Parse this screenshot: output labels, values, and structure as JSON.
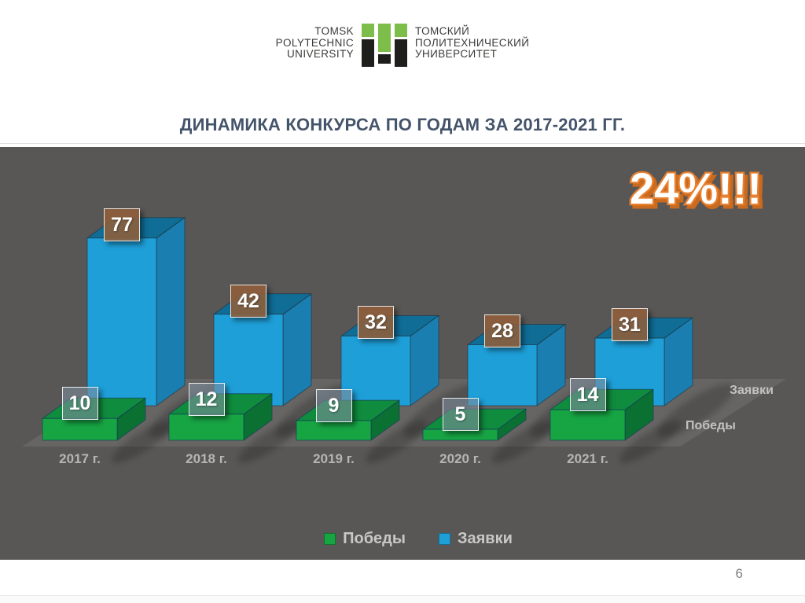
{
  "page": {
    "number": "6"
  },
  "header": {
    "logo_en_lines": [
      "TOMSK",
      "POLYTECHNIC",
      "UNIVERSITY"
    ],
    "logo_ru_lines": [
      "ТОМСКИЙ",
      "ПОЛИТЕХНИЧЕСКИЙ",
      "УНИВЕРСИТЕТ"
    ],
    "logo_green": "#7DBE4A",
    "logo_black": "#1E1E1C"
  },
  "title": "ДИНАМИКА КОНКУРСА ПО ГОДАМ ЗА 2017-2021 ГГ.",
  "chart_data": {
    "type": "bar",
    "style": "3d",
    "title": "ДИНАМИКА КОНКУРСА ПО ГОДАМ ЗА 2017-2021 ГГ.",
    "categories": [
      "2017 г.",
      "2018 г.",
      "2019 г.",
      "2020 г.",
      "2021 г."
    ],
    "series": [
      {
        "name": "Победы",
        "values": [
          10,
          12,
          9,
          5,
          14
        ],
        "color": "#17A544",
        "color_top": "#0F8C3D",
        "color_side": "#0B7132",
        "label_box": "rgba(125,140,155,0.6)"
      },
      {
        "name": "Заявки",
        "values": [
          77,
          42,
          32,
          28,
          31
        ],
        "color": "#1E9FD8",
        "color_top": "#0F6D96",
        "color_side": "#1A7FB0",
        "label_box": "rgba(143,95,58,0.88)"
      }
    ],
    "annotation": "24%!!!",
    "annotation_color": "#E8802F",
    "legend": [
      "Победы",
      "Заявки"
    ],
    "legend_position": "bottom",
    "grid": false,
    "background": "#585756",
    "floor_color": "#666564",
    "ylim": [
      0,
      80
    ]
  }
}
